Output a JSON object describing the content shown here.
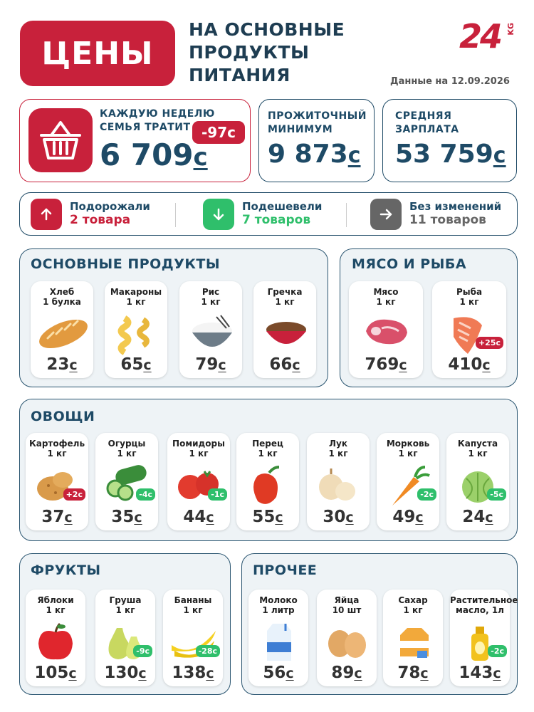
{
  "header": {
    "title": "ЦЕНЫ",
    "subtitle_lines": [
      "НА ОСНОВНЫЕ",
      "ПРОДУКТЫ",
      "ПИТАНИЯ"
    ],
    "logo": "24",
    "logo_sub": "KG",
    "date": "Данные на 12.09.2026"
  },
  "summary": {
    "weekly": {
      "label_1": "КАЖДУЮ НЕДЕЛЮ",
      "label_2": "СЕМЬЯ ТРАТИТ",
      "value": "6 709",
      "change": "-97с"
    },
    "minimum": {
      "label_1": "ПРОЖИТОЧНЫЙ",
      "label_2": "МИНИМУМ",
      "value": "9 873"
    },
    "salary": {
      "label_1": "СРЕДНЯЯ",
      "label_2": "ЗАРПЛАТА",
      "value": "53 759"
    },
    "currency": "с"
  },
  "trends": {
    "up": {
      "label": "Подорожали",
      "value": "2 товара"
    },
    "down": {
      "label": "Подешевели",
      "value": "7 товаров"
    },
    "same": {
      "label": "Без изменений",
      "value": "11 товаров"
    }
  },
  "sections": {
    "basic": {
      "title": "ОСНОВНЫЕ ПРОДУКТЫ",
      "items": [
        {
          "name": "Хлеб",
          "unit": "1 булка",
          "price": "23"
        },
        {
          "name": "Макароны",
          "unit": "1 кг",
          "price": "65"
        },
        {
          "name": "Рис",
          "unit": "1 кг",
          "price": "79"
        },
        {
          "name": "Гречка",
          "unit": "1 кг",
          "price": "66"
        }
      ]
    },
    "meat": {
      "title": "МЯСО И РЫБА",
      "items": [
        {
          "name": "Мясо",
          "unit": "1 кг",
          "price": "769"
        },
        {
          "name": "Рыба",
          "unit": "1 кг",
          "price": "410",
          "change": "+25с"
        }
      ]
    },
    "veg": {
      "title": "ОВОЩИ",
      "items": [
        {
          "name": "Картофель",
          "unit": "1 кг",
          "price": "37",
          "change": "+2с"
        },
        {
          "name": "Огурцы",
          "unit": "1 кг",
          "price": "35",
          "change": "-4с"
        },
        {
          "name": "Помидоры",
          "unit": "1 кг",
          "price": "44",
          "change": "-1с"
        },
        {
          "name": "Перец",
          "unit": "1 кг",
          "price": "55"
        },
        {
          "name": "Лук",
          "unit": "1 кг",
          "price": "30"
        },
        {
          "name": "Морковь",
          "unit": "1 кг",
          "price": "49",
          "change": "-2с"
        },
        {
          "name": "Капуста",
          "unit": "1 кг",
          "price": "24",
          "change": "-5с"
        }
      ]
    },
    "fruit": {
      "title": "ФРУКТЫ",
      "items": [
        {
          "name": "Яблоки",
          "unit": "1 кг",
          "price": "105"
        },
        {
          "name": "Груша",
          "unit": "1 кг",
          "price": "130",
          "change": "-9с"
        },
        {
          "name": "Бананы",
          "unit": "1 кг",
          "price": "138",
          "change": "-28с"
        }
      ]
    },
    "other": {
      "title": "ПРОЧЕЕ",
      "items": [
        {
          "name": "Молоко",
          "unit": "1 литр",
          "price": "56"
        },
        {
          "name": "Яйца",
          "unit": "10 шт",
          "price": "89"
        },
        {
          "name": "Сахар",
          "unit": "1 кг",
          "price": "78"
        },
        {
          "name": "Растительное",
          "unit": "масло, 1л",
          "price": "143",
          "change": "-2с"
        }
      ]
    }
  },
  "colors": {
    "red": "#c8213b",
    "green": "#2fbf6b",
    "navy": "#1e4a66",
    "gray": "#666666"
  }
}
